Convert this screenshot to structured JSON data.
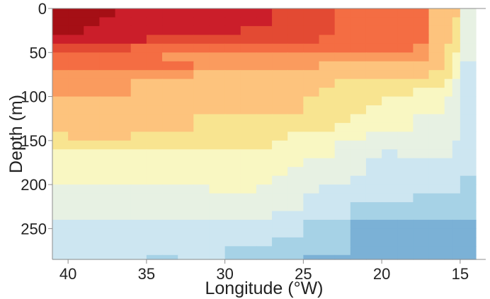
{
  "chart_data": {
    "type": "heatmap",
    "title": "",
    "xlabel": "Longitude (°W)",
    "ylabel": "Depth (m)",
    "xlim": [
      41,
      14
    ],
    "ylim": [
      285,
      0
    ],
    "x_ticks": [
      40,
      35,
      30,
      25,
      20,
      15
    ],
    "y_ticks": [
      0,
      50,
      100,
      150,
      200,
      250
    ],
    "x_tick_labels": [
      "40",
      "35",
      "30",
      "25",
      "20",
      "15"
    ],
    "y_tick_labels": [
      "0",
      "50",
      "100",
      "150",
      "200",
      "250"
    ],
    "x_axis_reversed": true,
    "y_axis_reversed": true,
    "grid": false,
    "legend": "none",
    "color_levels": [
      "#a50f15",
      "#cb1e2a",
      "#e34a33",
      "#f46d43",
      "#fa9b5e",
      "#fdc37d",
      "#f8e490",
      "#f9f7c2",
      "#e7f1e3",
      "#cde6f1",
      "#a6d2e6",
      "#7bb1d6"
    ],
    "x_edges": [
      41,
      40,
      39,
      38,
      37,
      36,
      35,
      34,
      33,
      32,
      31,
      30,
      29,
      28,
      27,
      26,
      25,
      24,
      23,
      22,
      21,
      20,
      19,
      18,
      17,
      16,
      15.5,
      15,
      14
    ],
    "depth_edges": [
      0,
      10,
      20,
      30,
      40,
      50,
      60,
      70,
      80,
      90,
      100,
      110,
      120,
      130,
      140,
      150,
      160,
      170,
      180,
      190,
      200,
      210,
      220,
      230,
      240,
      250,
      260,
      270,
      280,
      285
    ],
    "values": [
      [
        0,
        0,
        0,
        0,
        1,
        1,
        1,
        1,
        1,
        1,
        1,
        1,
        1,
        1,
        2,
        2,
        2,
        2,
        3,
        3,
        3,
        3,
        3,
        3,
        5,
        5,
        5,
        8
      ],
      [
        0,
        0,
        0,
        1,
        1,
        1,
        1,
        1,
        1,
        1,
        1,
        1,
        1,
        1,
        2,
        2,
        2,
        2,
        3,
        3,
        3,
        3,
        3,
        3,
        5,
        5,
        6,
        8
      ],
      [
        0,
        0,
        1,
        1,
        1,
        1,
        1,
        1,
        1,
        1,
        1,
        1,
        2,
        2,
        2,
        2,
        2,
        2,
        3,
        3,
        3,
        3,
        3,
        3,
        5,
        5,
        6,
        8
      ],
      [
        1,
        1,
        1,
        1,
        1,
        1,
        2,
        2,
        2,
        2,
        2,
        2,
        2,
        2,
        2,
        2,
        2,
        3,
        3,
        3,
        3,
        3,
        3,
        3,
        5,
        5,
        6,
        8
      ],
      [
        2,
        2,
        2,
        2,
        2,
        3,
        3,
        3,
        3,
        3,
        3,
        3,
        3,
        3,
        3,
        3,
        3,
        3,
        3,
        3,
        3,
        3,
        3,
        4,
        5,
        6,
        6,
        8
      ],
      [
        3,
        3,
        3,
        3,
        3,
        3,
        3,
        4,
        4,
        4,
        4,
        4,
        4,
        4,
        4,
        4,
        4,
        4,
        4,
        4,
        4,
        4,
        4,
        4,
        5,
        6,
        7,
        8
      ],
      [
        3,
        3,
        3,
        3,
        3,
        3,
        3,
        3,
        3,
        4,
        4,
        4,
        4,
        4,
        4,
        4,
        4,
        5,
        5,
        5,
        5,
        5,
        5,
        5,
        5,
        6,
        7,
        9
      ],
      [
        4,
        4,
        4,
        4,
        4,
        4,
        4,
        4,
        4,
        5,
        5,
        5,
        5,
        5,
        5,
        5,
        5,
        5,
        5,
        5,
        5,
        5,
        5,
        5,
        6,
        6,
        7,
        9
      ],
      [
        4,
        4,
        4,
        4,
        4,
        5,
        5,
        5,
        5,
        5,
        5,
        5,
        5,
        5,
        5,
        5,
        5,
        5,
        6,
        6,
        6,
        6,
        6,
        6,
        6,
        7,
        8,
        9
      ],
      [
        4,
        4,
        4,
        4,
        4,
        5,
        5,
        5,
        5,
        5,
        5,
        5,
        5,
        5,
        5,
        5,
        5,
        6,
        6,
        6,
        6,
        6,
        6,
        7,
        7,
        7,
        8,
        9
      ],
      [
        5,
        5,
        5,
        5,
        5,
        5,
        5,
        5,
        5,
        5,
        5,
        5,
        5,
        5,
        5,
        5,
        6,
        6,
        6,
        6,
        6,
        7,
        7,
        7,
        7,
        8,
        8,
        9
      ],
      [
        5,
        5,
        5,
        5,
        5,
        5,
        5,
        5,
        5,
        5,
        5,
        5,
        5,
        5,
        5,
        5,
        6,
        6,
        6,
        6,
        7,
        7,
        7,
        7,
        7,
        8,
        8,
        9
      ],
      [
        5,
        5,
        5,
        5,
        5,
        5,
        5,
        5,
        5,
        6,
        6,
        6,
        6,
        6,
        6,
        6,
        6,
        6,
        6,
        7,
        7,
        7,
        7,
        8,
        8,
        8,
        8,
        9
      ],
      [
        5,
        5,
        5,
        5,
        5,
        5,
        5,
        5,
        5,
        6,
        6,
        6,
        6,
        6,
        6,
        6,
        6,
        6,
        7,
        7,
        7,
        7,
        7,
        8,
        8,
        8,
        8,
        9
      ],
      [
        6,
        5,
        5,
        5,
        5,
        6,
        6,
        6,
        6,
        6,
        6,
        6,
        6,
        6,
        6,
        7,
        7,
        7,
        7,
        7,
        8,
        8,
        8,
        8,
        8,
        8,
        8,
        9
      ],
      [
        6,
        6,
        6,
        6,
        6,
        6,
        6,
        6,
        6,
        6,
        6,
        6,
        6,
        6,
        7,
        7,
        7,
        7,
        8,
        8,
        8,
        8,
        8,
        8,
        8,
        8,
        9,
        9
      ],
      [
        7,
        7,
        7,
        7,
        7,
        7,
        7,
        7,
        7,
        7,
        7,
        7,
        7,
        7,
        7,
        7,
        7,
        7,
        8,
        8,
        8,
        9,
        8,
        8,
        8,
        8,
        9,
        9
      ],
      [
        7,
        7,
        7,
        7,
        7,
        7,
        7,
        7,
        7,
        7,
        7,
        7,
        7,
        7,
        7,
        7,
        8,
        8,
        8,
        8,
        9,
        9,
        9,
        9,
        9,
        9,
        9,
        9
      ],
      [
        7,
        7,
        7,
        7,
        7,
        7,
        7,
        7,
        7,
        7,
        7,
        7,
        7,
        7,
        7,
        8,
        8,
        8,
        8,
        8,
        9,
        9,
        9,
        9,
        9,
        9,
        9,
        9
      ],
      [
        7,
        7,
        7,
        7,
        7,
        7,
        7,
        7,
        7,
        7,
        7,
        7,
        7,
        7,
        8,
        8,
        8,
        8,
        8,
        9,
        9,
        9,
        9,
        9,
        9,
        9,
        9,
        10
      ],
      [
        8,
        8,
        8,
        8,
        8,
        8,
        8,
        8,
        8,
        8,
        7,
        7,
        7,
        8,
        8,
        8,
        8,
        9,
        9,
        9,
        9,
        9,
        9,
        9,
        9,
        9,
        9,
        10
      ],
      [
        8,
        8,
        8,
        8,
        8,
        8,
        8,
        8,
        8,
        8,
        8,
        8,
        8,
        8,
        8,
        8,
        9,
        9,
        9,
        9,
        9,
        9,
        9,
        10,
        10,
        10,
        10,
        10
      ],
      [
        8,
        8,
        8,
        8,
        8,
        8,
        8,
        8,
        8,
        8,
        8,
        8,
        8,
        8,
        8,
        8,
        9,
        9,
        9,
        10,
        10,
        10,
        10,
        10,
        10,
        10,
        10,
        10
      ],
      [
        8,
        8,
        8,
        8,
        8,
        8,
        8,
        8,
        8,
        8,
        8,
        8,
        8,
        8,
        9,
        9,
        9,
        9,
        9,
        10,
        10,
        10,
        10,
        10,
        10,
        10,
        10,
        10
      ],
      [
        9,
        9,
        9,
        9,
        9,
        9,
        9,
        9,
        9,
        9,
        9,
        9,
        9,
        9,
        9,
        9,
        10,
        10,
        10,
        11,
        11,
        11,
        11,
        11,
        11,
        11,
        11,
        11
      ],
      [
        9,
        9,
        9,
        9,
        9,
        9,
        9,
        9,
        9,
        9,
        9,
        9,
        9,
        9,
        9,
        9,
        10,
        10,
        10,
        11,
        11,
        11,
        11,
        11,
        11,
        11,
        11,
        11
      ],
      [
        9,
        9,
        9,
        9,
        9,
        9,
        9,
        9,
        9,
        9,
        9,
        9,
        9,
        9,
        10,
        10,
        10,
        10,
        10,
        11,
        11,
        11,
        11,
        11,
        11,
        11,
        11,
        11
      ],
      [
        9,
        9,
        9,
        9,
        9,
        9,
        9,
        9,
        9,
        9,
        9,
        10,
        10,
        10,
        10,
        10,
        10,
        10,
        10,
        11,
        11,
        11,
        11,
        11,
        11,
        11,
        11,
        11
      ],
      [
        9,
        9,
        9,
        9,
        9,
        9,
        10,
        10,
        9,
        9,
        9,
        10,
        10,
        10,
        10,
        10,
        11,
        11,
        11,
        11,
        11,
        11,
        11,
        11,
        11,
        11,
        11,
        11
      ]
    ]
  }
}
